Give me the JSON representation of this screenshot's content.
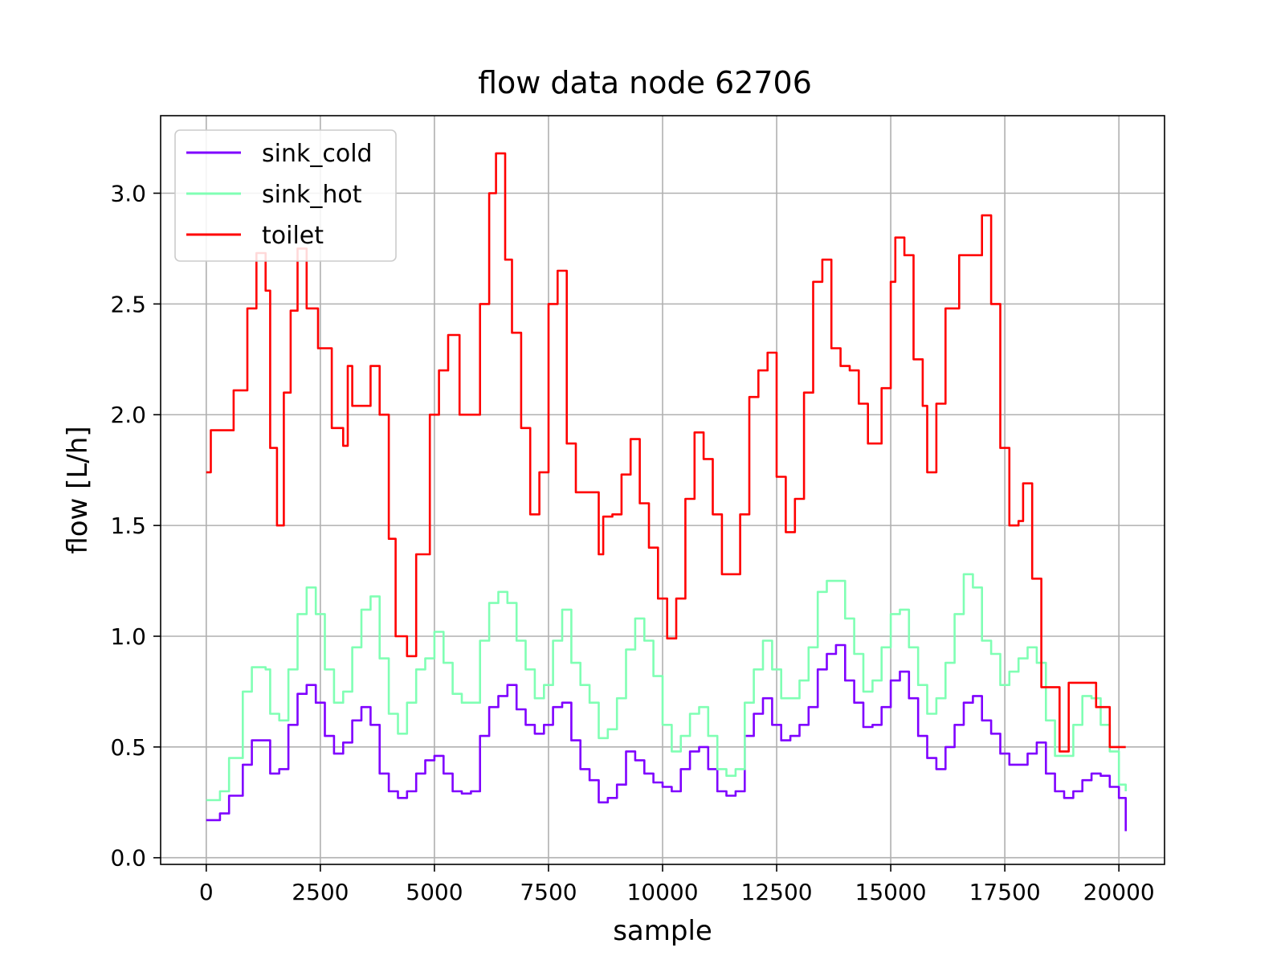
{
  "chart_data": {
    "type": "line",
    "title": "flow data node 62706",
    "xlabel": "sample",
    "ylabel": "flow [L/h]",
    "xlim": [
      -1000,
      21000
    ],
    "ylim": [
      -0.03,
      3.35
    ],
    "xticks": [
      0,
      2500,
      5000,
      7500,
      10000,
      12500,
      15000,
      17500,
      20000
    ],
    "yticks": [
      0.0,
      0.5,
      1.0,
      1.5,
      2.0,
      2.5,
      3.0
    ],
    "xtick_labels": [
      "0",
      "2500",
      "5000",
      "7500",
      "10000",
      "12500",
      "15000",
      "17500",
      "20000"
    ],
    "ytick_labels": [
      "0.0",
      "0.5",
      "1.0",
      "1.5",
      "2.0",
      "2.5",
      "3.0"
    ],
    "grid": true,
    "legend_position": "top-left",
    "series": [
      {
        "name": "sink_cold",
        "color": "#7f00ff",
        "x": [
          0,
          300,
          500,
          800,
          1000,
          1300,
          1400,
          1600,
          1800,
          2000,
          2200,
          2400,
          2600,
          2800,
          3000,
          3200,
          3400,
          3600,
          3800,
          4000,
          4200,
          4400,
          4600,
          4800,
          5000,
          5200,
          5400,
          5600,
          5800,
          6000,
          6200,
          6400,
          6600,
          6800,
          7000,
          7200,
          7400,
          7600,
          7800,
          8000,
          8200,
          8400,
          8600,
          8800,
          9000,
          9200,
          9400,
          9600,
          9800,
          10000,
          10200,
          10400,
          10600,
          10800,
          11000,
          11200,
          11400,
          11600,
          11800,
          12000,
          12200,
          12400,
          12600,
          12800,
          13000,
          13200,
          13400,
          13600,
          13800,
          14000,
          14200,
          14400,
          14600,
          14800,
          15000,
          15200,
          15400,
          15600,
          15800,
          16000,
          16200,
          16400,
          16600,
          16800,
          17000,
          17200,
          17400,
          17600,
          17800,
          18000,
          18200,
          18400,
          18600,
          18800,
          19000,
          19200,
          19400,
          19600,
          19800,
          20000,
          20150
        ],
        "y": [
          0.17,
          0.2,
          0.28,
          0.42,
          0.53,
          0.53,
          0.38,
          0.4,
          0.6,
          0.74,
          0.78,
          0.7,
          0.55,
          0.47,
          0.52,
          0.62,
          0.68,
          0.6,
          0.38,
          0.3,
          0.27,
          0.3,
          0.38,
          0.44,
          0.46,
          0.38,
          0.3,
          0.29,
          0.3,
          0.55,
          0.68,
          0.73,
          0.78,
          0.67,
          0.6,
          0.56,
          0.6,
          0.68,
          0.7,
          0.53,
          0.4,
          0.35,
          0.25,
          0.27,
          0.33,
          0.48,
          0.44,
          0.38,
          0.34,
          0.32,
          0.3,
          0.4,
          0.48,
          0.5,
          0.4,
          0.3,
          0.28,
          0.3,
          0.55,
          0.65,
          0.72,
          0.6,
          0.53,
          0.55,
          0.6,
          0.68,
          0.85,
          0.92,
          0.96,
          0.8,
          0.7,
          0.59,
          0.6,
          0.68,
          0.8,
          0.84,
          0.72,
          0.55,
          0.45,
          0.4,
          0.5,
          0.6,
          0.7,
          0.73,
          0.62,
          0.56,
          0.47,
          0.42,
          0.42,
          0.47,
          0.52,
          0.38,
          0.3,
          0.27,
          0.3,
          0.35,
          0.38,
          0.37,
          0.32,
          0.27,
          0.12
        ]
      },
      {
        "name": "sink_hot",
        "color": "#80ffb4",
        "x": [
          0,
          300,
          500,
          800,
          1000,
          1300,
          1400,
          1600,
          1800,
          2000,
          2200,
          2400,
          2600,
          2800,
          3000,
          3200,
          3400,
          3600,
          3800,
          4000,
          4200,
          4400,
          4600,
          4800,
          5000,
          5200,
          5400,
          5600,
          5800,
          6000,
          6200,
          6400,
          6600,
          6800,
          7000,
          7200,
          7400,
          7600,
          7800,
          8000,
          8200,
          8400,
          8600,
          8800,
          9000,
          9200,
          9400,
          9600,
          9800,
          10000,
          10200,
          10400,
          10600,
          10800,
          11000,
          11200,
          11400,
          11600,
          11800,
          12000,
          12200,
          12400,
          12600,
          12800,
          13000,
          13200,
          13400,
          13600,
          13800,
          14000,
          14200,
          14400,
          14600,
          14800,
          15000,
          15200,
          15400,
          15600,
          15800,
          16000,
          16200,
          16400,
          16600,
          16800,
          17000,
          17200,
          17400,
          17600,
          17800,
          18000,
          18200,
          18400,
          18600,
          18800,
          19000,
          19200,
          19400,
          19600,
          19800,
          20000,
          20150
        ],
        "y": [
          0.26,
          0.3,
          0.45,
          0.75,
          0.86,
          0.85,
          0.65,
          0.62,
          0.85,
          1.1,
          1.22,
          1.1,
          0.85,
          0.7,
          0.75,
          0.95,
          1.12,
          1.18,
          0.9,
          0.65,
          0.56,
          0.7,
          0.85,
          0.9,
          1.02,
          0.88,
          0.74,
          0.7,
          0.7,
          0.98,
          1.15,
          1.2,
          1.15,
          0.98,
          0.85,
          0.72,
          0.78,
          0.98,
          1.12,
          0.88,
          0.78,
          0.7,
          0.54,
          0.58,
          0.72,
          0.94,
          1.08,
          0.98,
          0.82,
          0.6,
          0.48,
          0.55,
          0.65,
          0.68,
          0.55,
          0.4,
          0.37,
          0.4,
          0.7,
          0.85,
          0.98,
          0.85,
          0.72,
          0.72,
          0.8,
          0.95,
          1.2,
          1.25,
          1.25,
          1.08,
          0.92,
          0.75,
          0.8,
          0.95,
          1.1,
          1.12,
          0.95,
          0.78,
          0.65,
          0.72,
          0.88,
          1.1,
          1.28,
          1.22,
          0.98,
          0.92,
          0.78,
          0.84,
          0.9,
          0.95,
          0.88,
          0.62,
          0.46,
          0.46,
          0.6,
          0.73,
          0.72,
          0.6,
          0.48,
          0.33,
          0.3
        ]
      },
      {
        "name": "toilet",
        "color": "#ff0000",
        "x": [
          0,
          100,
          300,
          600,
          900,
          1100,
          1300,
          1400,
          1550,
          1700,
          1850,
          2000,
          2200,
          2450,
          2750,
          3000,
          3100,
          3200,
          3350,
          3600,
          3800,
          4000,
          4150,
          4400,
          4600,
          4900,
          5100,
          5300,
          5550,
          5900,
          6000,
          6200,
          6350,
          6550,
          6700,
          6900,
          7100,
          7300,
          7500,
          7700,
          7900,
          8100,
          8300,
          8600,
          8700,
          8900,
          9100,
          9300,
          9500,
          9700,
          9900,
          10100,
          10300,
          10500,
          10700,
          10900,
          11100,
          11300,
          11500,
          11700,
          11900,
          12100,
          12300,
          12500,
          12700,
          12900,
          13100,
          13300,
          13500,
          13700,
          13900,
          14100,
          14300,
          14500,
          14800,
          15000,
          15100,
          15300,
          15500,
          15700,
          15800,
          16000,
          16200,
          16500,
          16800,
          17000,
          17200,
          17400,
          17600,
          17800,
          17900,
          18100,
          18300,
          18500,
          18700,
          18900,
          19200,
          19500,
          19800,
          20000,
          20150
        ],
        "y": [
          1.74,
          1.93,
          1.93,
          2.11,
          2.48,
          2.73,
          2.56,
          1.85,
          1.5,
          2.1,
          2.47,
          2.75,
          2.48,
          2.3,
          1.94,
          1.86,
          2.22,
          2.04,
          2.04,
          2.22,
          2.0,
          1.44,
          1.0,
          0.91,
          1.37,
          2.0,
          2.2,
          2.36,
          2.0,
          2.0,
          2.5,
          3.0,
          3.18,
          2.7,
          2.37,
          1.94,
          1.55,
          1.74,
          2.5,
          2.65,
          1.87,
          1.65,
          1.65,
          1.37,
          1.54,
          1.55,
          1.73,
          1.89,
          1.6,
          1.4,
          1.17,
          0.99,
          1.17,
          1.62,
          1.92,
          1.8,
          1.55,
          1.28,
          1.28,
          1.55,
          2.08,
          2.2,
          2.28,
          1.72,
          1.47,
          1.62,
          2.1,
          2.6,
          2.7,
          2.3,
          2.22,
          2.2,
          2.05,
          1.87,
          2.12,
          2.6,
          2.8,
          2.72,
          2.25,
          2.04,
          1.74,
          2.05,
          2.48,
          2.72,
          2.72,
          2.9,
          2.5,
          1.85,
          1.5,
          1.52,
          1.69,
          1.26,
          0.77,
          0.77,
          0.48,
          0.79,
          0.79,
          0.68,
          0.5,
          0.5,
          0.5
        ]
      }
    ]
  }
}
